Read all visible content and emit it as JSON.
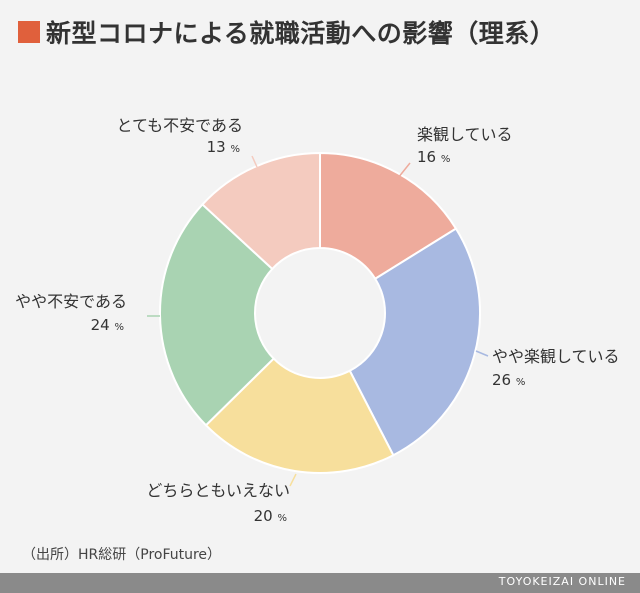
{
  "title": "新型コロナによる就職活動への影響（理系）",
  "title_mark_color": "#e0603c",
  "source": "（出所）HR総研（ProFuture）",
  "brand": "TOYOKEIZAI ONLINE",
  "chart_data": {
    "type": "pie",
    "donut": true,
    "title": "新型コロナによる就職活動への影響（理系）",
    "unit": "%",
    "slices": [
      {
        "label": "楽観している",
        "value": 16,
        "color": "#eeab9c"
      },
      {
        "label": "やや楽観している",
        "value": 26,
        "color": "#a8b9e1"
      },
      {
        "label": "どちらともいえない",
        "value": 20,
        "color": "#f7df9c"
      },
      {
        "label": "やや不安である",
        "value": 24,
        "color": "#a9d3b2"
      },
      {
        "label": "とても不安である",
        "value": 13,
        "color": "#f4cbbf"
      }
    ]
  }
}
